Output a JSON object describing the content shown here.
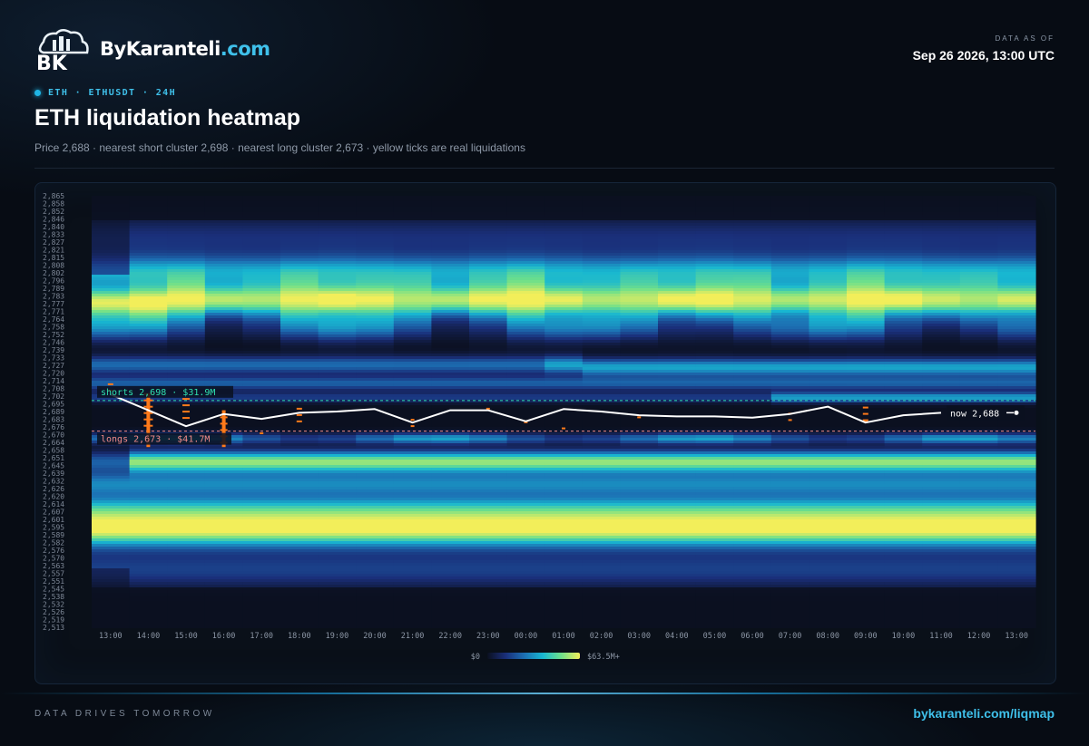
{
  "brand": {
    "name_part1": "ByKaranteli",
    "name_part2": ".com",
    "logo_letters": "BK"
  },
  "asof": {
    "label": "DATA AS OF",
    "value": "Sep 26 2026, 13:00 UTC"
  },
  "tagline": "ETH · ETHUSDT · 24H",
  "title": "ETH liquidation heatmap",
  "subtitle": "Price 2,688 · nearest short cluster 2,698 · nearest long cluster 2,673 · yellow ticks are real liquidations",
  "footer": {
    "left": "DATA DRIVES TOMORROW",
    "right": "bykaranteli.com/liqmap"
  },
  "colors": {
    "accent": "#3fc0ea",
    "short_line": "#2fe0b0",
    "long_line": "#f08a8a",
    "liquidation_tick": "#ff7a1a",
    "price_line": "#ffffff"
  },
  "chart_data": {
    "type": "heatmap",
    "title": "",
    "xlabel": "",
    "ylabel": "",
    "x_labels": [
      "13:00",
      "14:00",
      "15:00",
      "16:00",
      "17:00",
      "18:00",
      "19:00",
      "20:00",
      "21:00",
      "22:00",
      "23:00",
      "00:00",
      "01:00",
      "02:00",
      "03:00",
      "04:00",
      "05:00",
      "06:00",
      "07:00",
      "08:00",
      "09:00",
      "10:00",
      "11:00",
      "12:00",
      "13:00"
    ],
    "y_tick_labels": [
      "2,865",
      "2,858",
      "2,852",
      "2,846",
      "2,840",
      "2,833",
      "2,827",
      "2,821",
      "2,815",
      "2,808",
      "2,802",
      "2,796",
      "2,789",
      "2,783",
      "2,777",
      "2,771",
      "2,764",
      "2,758",
      "2,752",
      "2,746",
      "2,739",
      "2,733",
      "2,727",
      "2,720",
      "2,714",
      "2,708",
      "2,702",
      "2,695",
      "2,689",
      "2,683",
      "2,676",
      "2,670",
      "2,664",
      "2,658",
      "2,651",
      "2,645",
      "2,639",
      "2,632",
      "2,626",
      "2,620",
      "2,614",
      "2,607",
      "2,601",
      "2,595",
      "2,589",
      "2,582",
      "2,576",
      "2,570",
      "2,563",
      "2,557",
      "2,551",
      "2,545",
      "2,538",
      "2,532",
      "2,526",
      "2,519",
      "2,513"
    ],
    "ylim": [
      2513,
      2865
    ],
    "price_series": [
      2703,
      2690,
      2677,
      2687,
      2683,
      2688,
      2689,
      2691,
      2680,
      2690,
      2690,
      2681,
      2691,
      2689,
      2686,
      2685,
      2685,
      2684,
      2687,
      2693,
      2680,
      2686,
      2688
    ],
    "price_series_x_labels": [
      "13:00",
      "14:00",
      "15:00",
      "16:00",
      "17:00",
      "18:00",
      "19:00",
      "20:00",
      "21:00",
      "22:00",
      "23:00",
      "00:00",
      "01:00",
      "02:00",
      "03:00",
      "04:00",
      "05:00",
      "06:00",
      "07:00",
      "08:00",
      "09:00",
      "10:00",
      "11:00"
    ],
    "current_price": 2688,
    "current_price_label": "now 2,688",
    "short_cluster": {
      "price": 2698,
      "label": "shorts 2,698 · $31.9M"
    },
    "long_cluster": {
      "price": 2673,
      "label": "longs 2,673 · $41.7M"
    },
    "colorscale": {
      "min_label": "$0",
      "max_label": "$63.5M+",
      "colors": [
        "#0b1020",
        "#1a2f7a",
        "#1c6fb3",
        "#18b7d1",
        "#6fe08a",
        "#f2ee5a"
      ]
    },
    "grid": false,
    "legend": "bottom-center"
  }
}
